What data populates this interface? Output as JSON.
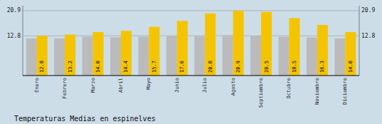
{
  "chart_data": {
    "type": "bar",
    "title": "Temperaturas Medias en espinelves",
    "categories": [
      "Enero",
      "Febrero",
      "Marzo",
      "Abril",
      "Mayo",
      "Junio",
      "Julio",
      "Agosto",
      "Septiembre",
      "Octubre",
      "Noviembre",
      "Diciembre"
    ],
    "series": [
      {
        "color": "#BBBBBB",
        "values": [
          12.0,
          12.0,
          12.5,
          12.3,
          12.5,
          12.7,
          12.7,
          13.0,
          12.8,
          12.5,
          12.3,
          12.0
        ]
      },
      {
        "color": "#F5C400",
        "values": [
          12.8,
          13.2,
          14.0,
          14.4,
          15.7,
          17.6,
          20.0,
          20.9,
          20.5,
          18.5,
          16.3,
          14.0
        ],
        "value_labels": [
          "12.8",
          "13.2",
          "14.0",
          "14.4",
          "15.7",
          "17.6",
          "20.0",
          "20.9",
          "20.5",
          "18.5",
          "16.3",
          "14.0"
        ]
      }
    ],
    "ylim": [
      0,
      22.5
    ],
    "yticks": [
      12.8,
      20.9
    ],
    "y2lim": [
      0,
      22.5
    ],
    "y2ticks": [
      12.8,
      20.9
    ],
    "grid": true
  }
}
